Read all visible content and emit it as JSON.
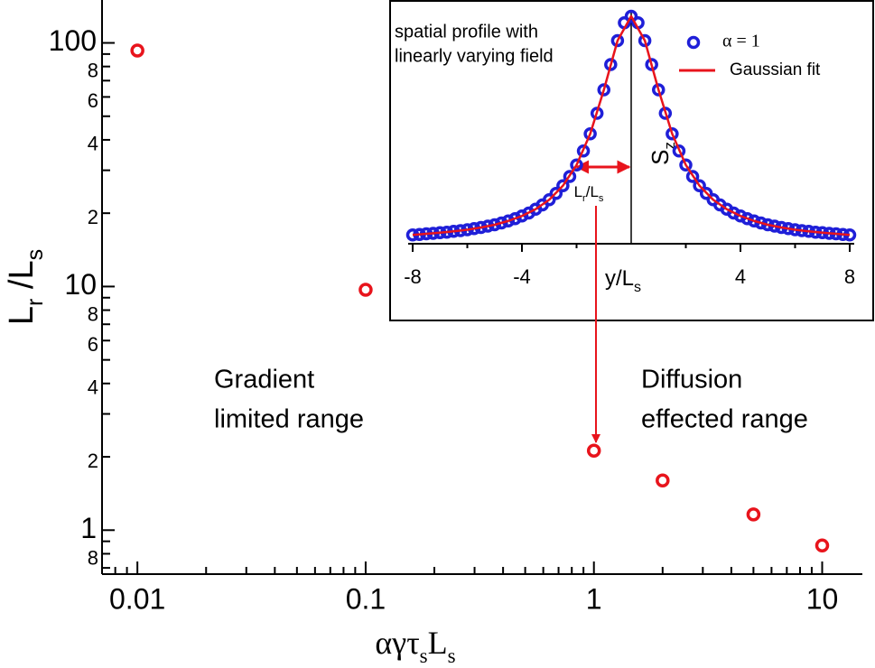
{
  "chart_data": [
    {
      "type": "scatter",
      "xlabel_parts": [
        {
          "text": "αγτ"
        },
        {
          "text": "s",
          "sub": true
        },
        {
          "text": "L"
        },
        {
          "text": "s",
          "sub": true
        }
      ],
      "ylabel_parts": [
        {
          "text": "L"
        },
        {
          "text": "r",
          "sub": true
        },
        {
          "text": " /L"
        },
        {
          "text": "s",
          "sub": true
        }
      ],
      "x": [
        0.01,
        0.1,
        1,
        2,
        5,
        10
      ],
      "series": [
        {
          "color": "#e8141c",
          "values": [
            93,
            9.7,
            2.12,
            1.6,
            1.16,
            0.865
          ]
        }
      ],
      "log_x": true,
      "log_y": true,
      "xlim": [
        0.007,
        15
      ],
      "ylim": [
        0.66,
        150
      ],
      "xticks": [
        0.01,
        0.1,
        1,
        10
      ],
      "xminorticks": [
        0.008,
        0.009,
        0.02,
        0.03,
        0.04,
        0.05,
        0.06,
        0.07,
        0.08,
        0.09,
        0.2,
        0.3,
        0.4,
        0.5,
        0.6,
        0.7,
        0.8,
        0.9,
        2,
        3,
        4,
        5,
        6,
        7,
        8,
        9
      ],
      "yticks": [
        {
          "value": 0.8,
          "label": "8"
        },
        1,
        2,
        4,
        6,
        8,
        10,
        {
          "value": 20,
          "label": "2"
        },
        {
          "value": 40,
          "label": "4"
        },
        {
          "value": 60,
          "label": "6"
        },
        {
          "value": 80,
          "label": "8"
        },
        100
      ],
      "yminorticks": [
        0.7,
        0.9,
        3,
        5,
        7,
        9,
        30,
        50,
        70,
        90
      ],
      "annotations": [
        {
          "lines": [
            "Gradient",
            "limited range"
          ]
        },
        {
          "lines": [
            "Diffusion",
            "effected range"
          ]
        }
      ]
    },
    {
      "type": "line",
      "xlabel_parts": [
        {
          "text": "y/L"
        },
        {
          "text": "s",
          "sub": true
        }
      ],
      "ylabel_parts": [
        {
          "text": "S"
        },
        {
          "text": "z",
          "sub": true
        }
      ],
      "note_lines": [
        "spatial profile with",
        "linearly varying field"
      ],
      "width_label_parts": [
        {
          "text": "L"
        },
        {
          "text": "r",
          "sub": true
        },
        {
          "text": "/L"
        },
        {
          "text": "s",
          "sub": true
        }
      ],
      "xlim": [
        -8,
        8
      ],
      "ylim": [
        0,
        1
      ],
      "xticks": [
        -8,
        -4,
        4,
        8
      ],
      "xminorticks": [
        -6,
        -2,
        2,
        6
      ],
      "series": [
        {
          "name": "α = 1",
          "color": "#1f1fd8",
          "marker": "circle",
          "x": [
            -8,
            -7.75,
            -7.5,
            -7.25,
            -7,
            -6.75,
            -6.5,
            -6.25,
            -6,
            -5.75,
            -5.5,
            -5.25,
            -5,
            -4.75,
            -4.5,
            -4.25,
            -4,
            -3.75,
            -3.5,
            -3.25,
            -3,
            -2.75,
            -2.5,
            -2.25,
            -2,
            -1.75,
            -1.5,
            -1.25,
            -1,
            -0.75,
            -0.5,
            -0.25,
            0,
            0.25,
            0.5,
            0.75,
            1,
            1.25,
            1.5,
            1.75,
            2,
            2.25,
            2.5,
            2.75,
            3,
            3.25,
            3.5,
            3.75,
            4,
            4.25,
            4.5,
            4.75,
            5,
            5.25,
            5.5,
            5.75,
            6,
            6.25,
            6.5,
            6.75,
            7,
            7.25,
            7.5,
            7.75,
            8
          ],
          "values": [
            0.031,
            0.033,
            0.036,
            0.038,
            0.041,
            0.043,
            0.047,
            0.05,
            0.054,
            0.059,
            0.064,
            0.07,
            0.076,
            0.084,
            0.093,
            0.103,
            0.115,
            0.128,
            0.145,
            0.164,
            0.187,
            0.215,
            0.249,
            0.29,
            0.341,
            0.403,
            0.479,
            0.57,
            0.674,
            0.786,
            0.892,
            0.971,
            1,
            0.971,
            0.892,
            0.786,
            0.674,
            0.57,
            0.479,
            0.403,
            0.341,
            0.29,
            0.249,
            0.215,
            0.187,
            0.164,
            0.145,
            0.128,
            0.115,
            0.103,
            0.093,
            0.084,
            0.076,
            0.07,
            0.064,
            0.059,
            0.054,
            0.05,
            0.047,
            0.043,
            0.041,
            0.038,
            0.036,
            0.033,
            0.031
          ]
        },
        {
          "name": "Gaussian fit",
          "color": "#e8141c",
          "marker": "line",
          "x": [
            -8,
            -7.5,
            -7,
            -6.5,
            -6,
            -5.5,
            -5,
            -4.5,
            -4,
            -3.5,
            -3,
            -2.5,
            -2,
            -1.5,
            -1,
            -0.5,
            0,
            0.5,
            1,
            1.5,
            2,
            2.5,
            3,
            3.5,
            4,
            4.5,
            5,
            5.5,
            6,
            6.5,
            7,
            7.5,
            8
          ],
          "values": [
            0.031,
            0.036,
            0.041,
            0.047,
            0.054,
            0.064,
            0.076,
            0.093,
            0.115,
            0.145,
            0.187,
            0.249,
            0.341,
            0.479,
            0.674,
            0.892,
            1,
            0.892,
            0.674,
            0.479,
            0.341,
            0.249,
            0.187,
            0.145,
            0.115,
            0.093,
            0.076,
            0.064,
            0.054,
            0.047,
            0.041,
            0.036,
            0.031
          ]
        }
      ]
    }
  ]
}
